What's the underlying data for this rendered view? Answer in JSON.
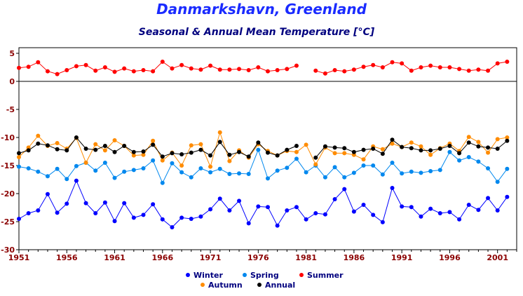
{
  "chart_data": {
    "type": "line",
    "title": "Danmarkshavn, Greenland",
    "subtitle": "Seasonal & Annual Mean Temperature [°C]",
    "xlim": [
      1951,
      2003
    ],
    "ylim": [
      -30,
      6
    ],
    "x_ticks": [
      1951,
      1956,
      1961,
      1966,
      1971,
      1976,
      1981,
      1986,
      1991,
      1996,
      2001
    ],
    "y_ticks": [
      5,
      0,
      -5,
      -10,
      -15,
      -20,
      -25,
      -30
    ],
    "grid": false,
    "zero_line": true,
    "legend_position": "bottom",
    "years": [
      1951,
      1952,
      1953,
      1954,
      1955,
      1956,
      1957,
      1958,
      1959,
      1960,
      1961,
      1962,
      1963,
      1964,
      1965,
      1966,
      1967,
      1968,
      1969,
      1970,
      1971,
      1972,
      1973,
      1974,
      1975,
      1976,
      1977,
      1978,
      1979,
      1980,
      1981,
      1982,
      1983,
      1984,
      1985,
      1986,
      1987,
      1988,
      1989,
      1990,
      1991,
      1992,
      1993,
      1994,
      1995,
      1996,
      1997,
      1998,
      1999,
      2000,
      2001,
      2002
    ],
    "series": [
      {
        "name": "Winter",
        "color": "#0000ff",
        "values": [
          -24.5,
          -23.5,
          -23.0,
          -20.1,
          -23.4,
          -21.8,
          -17.7,
          -21.7,
          -23.5,
          -21.6,
          -24.9,
          -21.7,
          -24.3,
          -23.8,
          -21.9,
          -24.6,
          -26.0,
          -24.3,
          -24.5,
          -24.1,
          -22.8,
          -20.9,
          -23.0,
          -21.3,
          -25.3,
          -22.3,
          -22.4,
          -25.7,
          -23.0,
          -22.4,
          -24.6,
          -23.5,
          -23.7,
          -21.0,
          -19.2,
          -23.2,
          -22.0,
          -23.8,
          -25.1,
          -19.0,
          -22.3,
          -22.4,
          -24.1,
          -22.7,
          -23.5,
          -23.3,
          -24.6,
          -22.0,
          -22.9,
          -20.8,
          -23.0,
          -20.6
        ]
      },
      {
        "name": "Spring",
        "color": "#0088ee",
        "values": [
          -15.2,
          -15.5,
          -16.1,
          -16.9,
          -15.6,
          -17.4,
          -15.1,
          -14.5,
          -15.9,
          -14.5,
          -17.2,
          -16.1,
          -15.8,
          -15.5,
          -14.1,
          -18.1,
          -14.6,
          -16.2,
          -17.1,
          -15.5,
          -16.2,
          -15.6,
          -16.5,
          -16.4,
          -16.5,
          -12.2,
          -17.3,
          -15.9,
          -15.4,
          -13.8,
          -16.2,
          -15.0,
          -17.1,
          -15.3,
          -17.1,
          -16.3,
          -15.0,
          -15.0,
          -16.6,
          -14.5,
          -16.4,
          -16.1,
          -16.3,
          -16.0,
          -15.8,
          -12.6,
          -14.1,
          -13.5,
          -14.3,
          -15.5,
          -17.9,
          -15.6
        ]
      },
      {
        "name": "Summer",
        "color": "#ff0000",
        "values": [
          2.4,
          2.6,
          3.4,
          1.8,
          1.3,
          2.0,
          2.7,
          2.9,
          1.9,
          2.5,
          1.7,
          2.3,
          1.8,
          2.0,
          1.8,
          3.5,
          2.3,
          2.9,
          2.3,
          2.1,
          2.8,
          2.1,
          2.1,
          2.2,
          2.0,
          2.5,
          1.8,
          2.0,
          2.2,
          2.8,
          null,
          1.9,
          1.4,
          2.0,
          1.8,
          2.1,
          2.6,
          2.9,
          2.5,
          3.4,
          3.2,
          1.9,
          2.5,
          2.8,
          2.5,
          2.5,
          2.2,
          1.9,
          2.1,
          1.9,
          3.2,
          3.5
        ]
      },
      {
        "name": "Autumn",
        "color": "#ff8c00",
        "values": [
          -13.5,
          -11.8,
          -9.7,
          -11.5,
          -11.0,
          -12.0,
          -10.1,
          -14.5,
          -11.2,
          -12.3,
          -10.5,
          -11.5,
          -13.2,
          -13.1,
          -10.6,
          -14.1,
          -12.7,
          -15.0,
          -11.4,
          -11.2,
          -15.2,
          -9.1,
          -14.2,
          -12.3,
          -13.6,
          -11.2,
          -12.4,
          -13.2,
          -12.4,
          -12.6,
          -11.3,
          -14.8,
          -11.8,
          -12.8,
          -12.8,
          -13.1,
          -13.9,
          -11.6,
          -12.1,
          -11.1,
          -11.7,
          -10.9,
          -11.6,
          -13.1,
          -11.9,
          -11.1,
          -12.4,
          -9.9,
          -10.8,
          -12.7,
          -10.3,
          -10.0
        ]
      },
      {
        "name": "Annual",
        "color": "#000000",
        "values": [
          -12.8,
          -12.3,
          -11.1,
          -11.4,
          -12.1,
          -12.3,
          -10.0,
          -12.0,
          -12.2,
          -11.5,
          -12.6,
          -11.5,
          -12.6,
          -12.5,
          -11.3,
          -13.4,
          -12.8,
          -13.0,
          -12.7,
          -12.2,
          -13.2,
          -10.8,
          -13.1,
          -12.6,
          -13.4,
          -10.9,
          -12.7,
          -13.2,
          -12.2,
          -11.5,
          null,
          -13.6,
          -11.6,
          -11.8,
          -11.9,
          -12.6,
          -12.2,
          -12.0,
          -12.9,
          -10.4,
          -11.7,
          -11.9,
          -12.3,
          -12.3,
          -12.0,
          -11.5,
          -12.8,
          -10.9,
          -11.6,
          -11.8,
          -12.0,
          -10.6
        ]
      }
    ]
  }
}
